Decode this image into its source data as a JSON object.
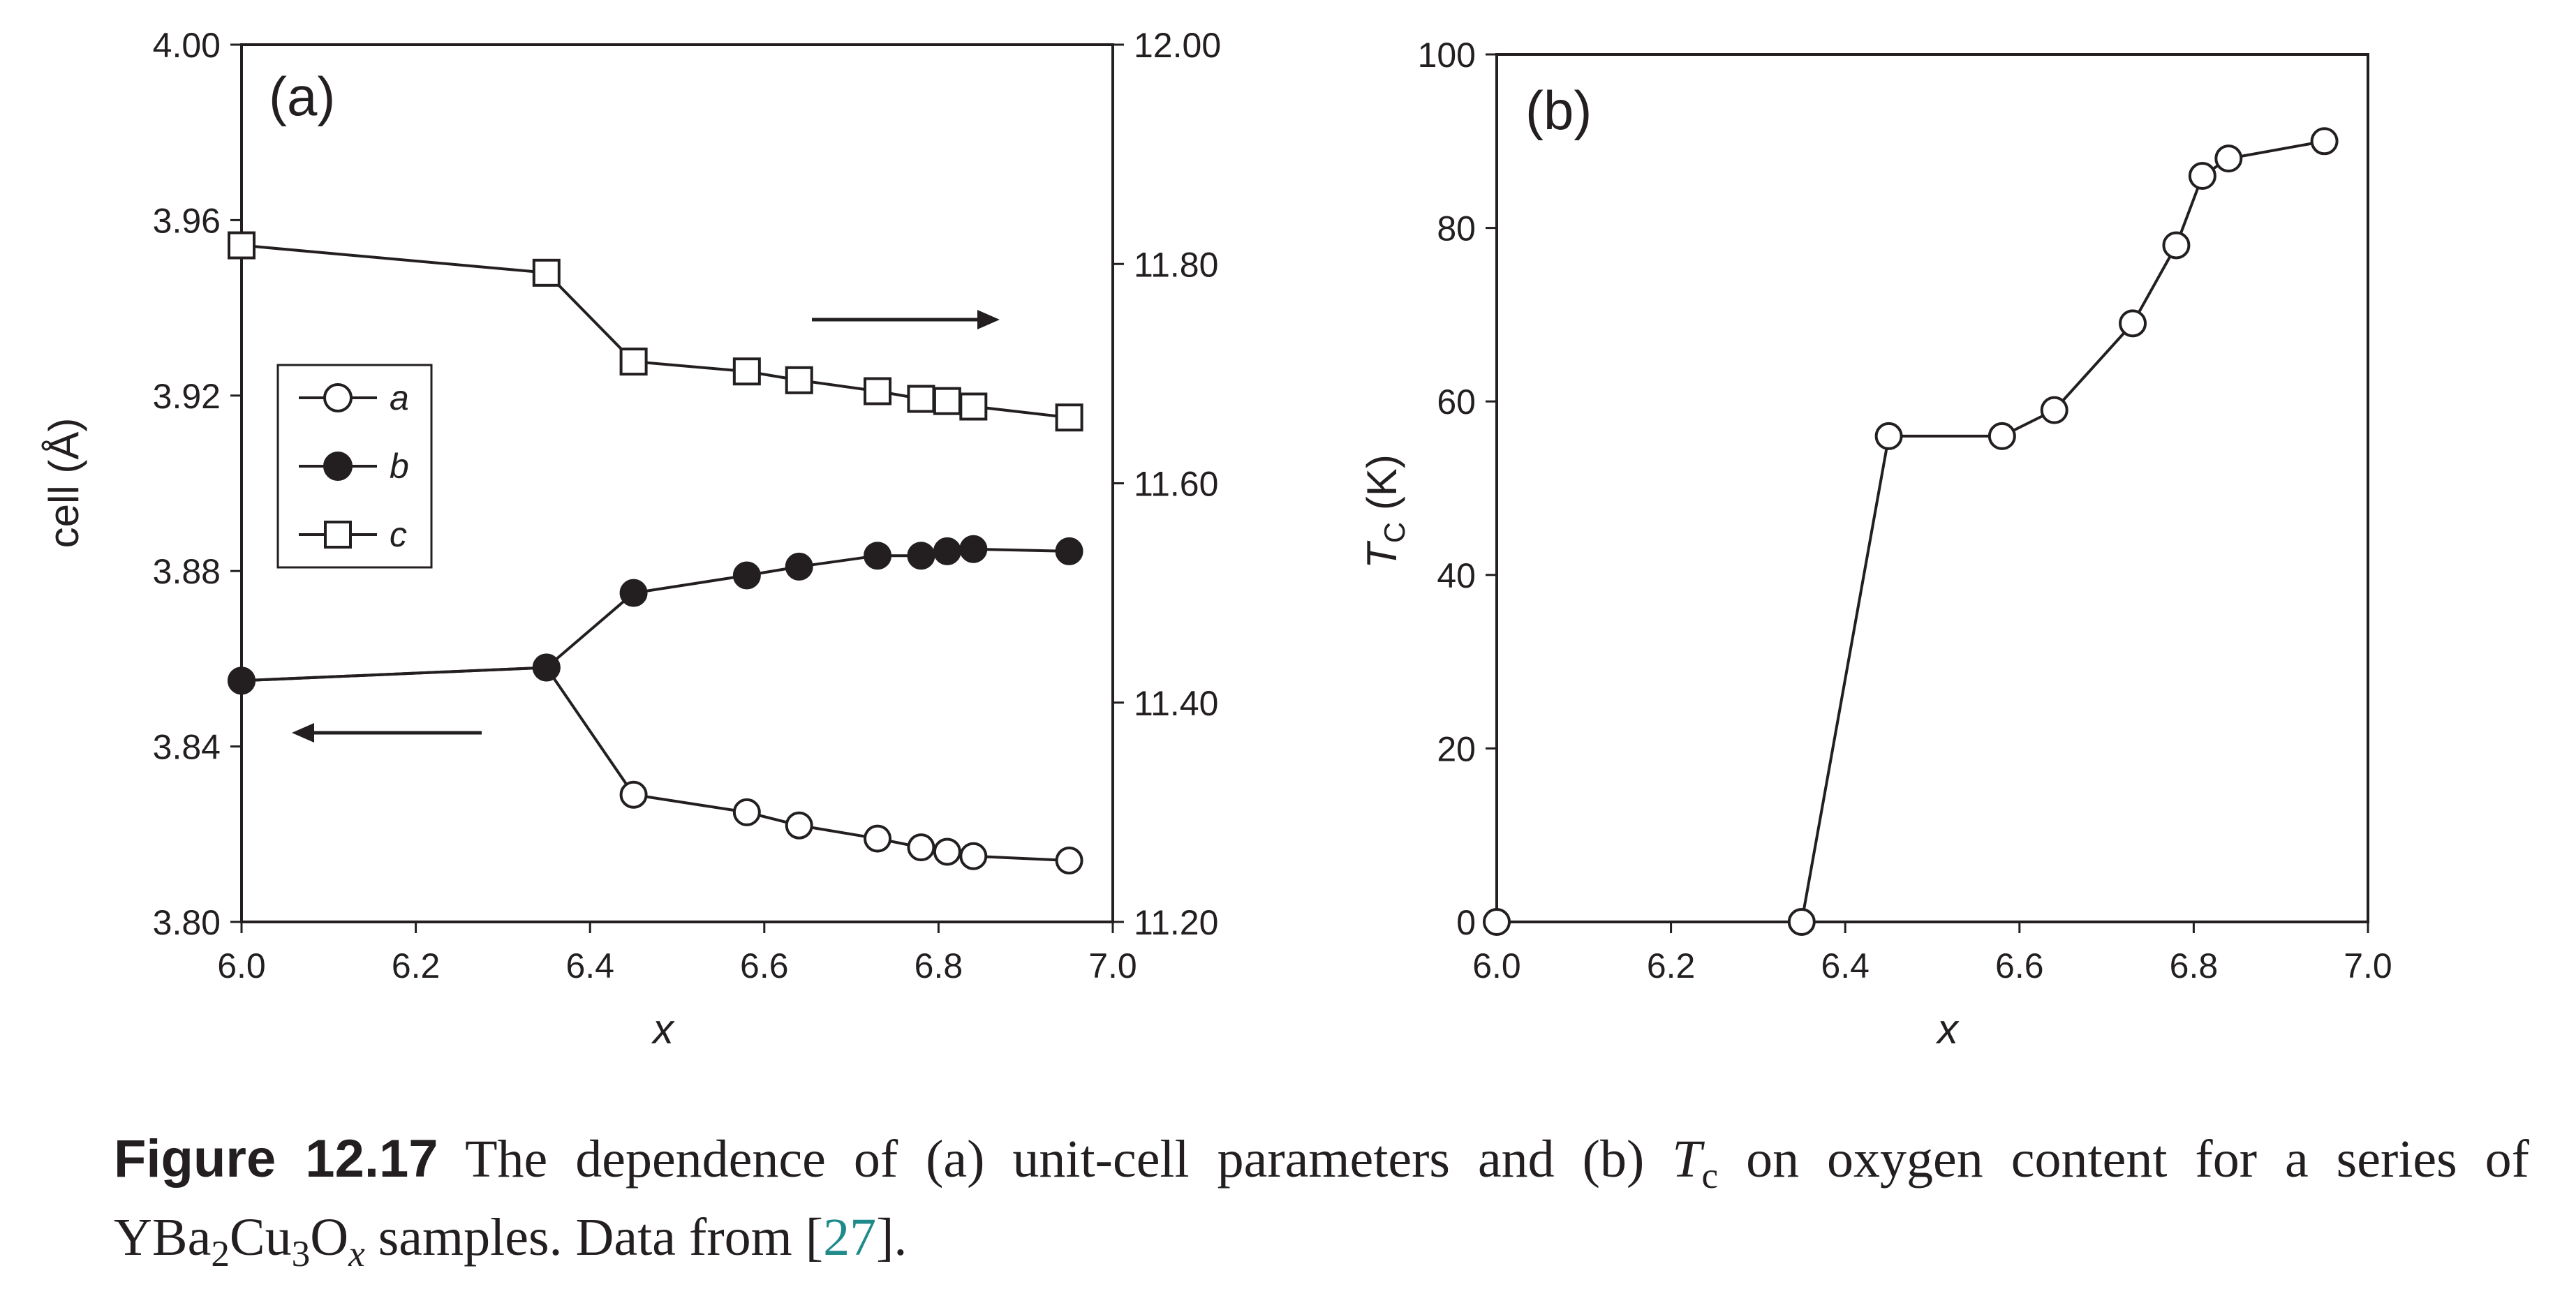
{
  "chart_data": [
    {
      "type": "line",
      "panel_label": "(a)",
      "xlabel": "x",
      "ylabel": "cell (Å)",
      "xlim": [
        6.0,
        7.0
      ],
      "ylim_left": [
        3.8,
        4.0
      ],
      "ylim_right": [
        11.2,
        12.0
      ],
      "x_ticks": [
        "6.0",
        "6.2",
        "6.4",
        "6.6",
        "6.8",
        "7.0"
      ],
      "y_ticks_left": [
        "3.80",
        "3.84",
        "3.88",
        "3.92",
        "3.96",
        "4.00"
      ],
      "y_ticks_right": [
        "11.20",
        "11.40",
        "11.60",
        "11.80",
        "12.00"
      ],
      "legend_position": "center-left",
      "grid": false,
      "annotations": [
        "arrow pointing right (series c uses right axis)",
        "arrow pointing left (series a, b use left axis)"
      ],
      "series": [
        {
          "name": "a",
          "marker": "open-circle",
          "axis": "left",
          "x": [
            6.0,
            6.35,
            6.45,
            6.58,
            6.64,
            6.73,
            6.78,
            6.81,
            6.84,
            6.95
          ],
          "y": [
            3.855,
            3.858,
            3.829,
            3.825,
            3.822,
            3.819,
            3.817,
            3.816,
            3.815,
            3.814
          ]
        },
        {
          "name": "b",
          "marker": "filled-circle",
          "axis": "left",
          "x": [
            6.0,
            6.35,
            6.45,
            6.58,
            6.64,
            6.73,
            6.78,
            6.81,
            6.84,
            6.95
          ],
          "y": [
            3.855,
            3.858,
            3.875,
            3.879,
            3.881,
            3.8835,
            3.8835,
            3.8845,
            3.885,
            3.8845
          ]
        },
        {
          "name": "c",
          "marker": "open-square",
          "axis": "right",
          "x": [
            6.0,
            6.35,
            6.45,
            6.58,
            6.64,
            6.73,
            6.78,
            6.81,
            6.84,
            6.95
          ],
          "y": [
            11.817,
            11.792,
            11.711,
            11.702,
            11.694,
            11.684,
            11.677,
            11.675,
            11.67,
            11.66
          ]
        }
      ]
    },
    {
      "type": "line",
      "panel_label": "(b)",
      "xlabel": "x",
      "ylabel_main": "T",
      "ylabel_sub": "C",
      "ylabel_unit": " (K)",
      "xlim": [
        6.0,
        7.0
      ],
      "ylim": [
        0,
        100
      ],
      "x_ticks": [
        "6.0",
        "6.2",
        "6.4",
        "6.6",
        "6.8",
        "7.0"
      ],
      "y_ticks": [
        "0",
        "20",
        "40",
        "60",
        "80",
        "100"
      ],
      "grid": false,
      "series": [
        {
          "marker": "open-circle",
          "x": [
            6.0,
            6.35,
            6.45,
            6.58,
            6.64,
            6.73,
            6.78,
            6.81,
            6.84,
            6.95
          ],
          "y": [
            0,
            0,
            56,
            56,
            59,
            69,
            78,
            86,
            88,
            90
          ]
        }
      ]
    }
  ],
  "caption": {
    "label": "Figure 12.17",
    "text1": " The dependence of (a) unit-cell parameters and (b) ",
    "tc_main": "T",
    "tc_sub": "c",
    "text2": " on oxygen content for a series of YBa",
    "sub1": "2",
    "text3": "Cu",
    "sub2": "3",
    "text4": "O",
    "sub3": "x",
    "text5": " samples. Data from [",
    "ref": "27",
    "text6": "]."
  },
  "colors": {
    "ink": "#231f20",
    "reference_link": "#1f8a8a",
    "background": "#ffffff"
  }
}
